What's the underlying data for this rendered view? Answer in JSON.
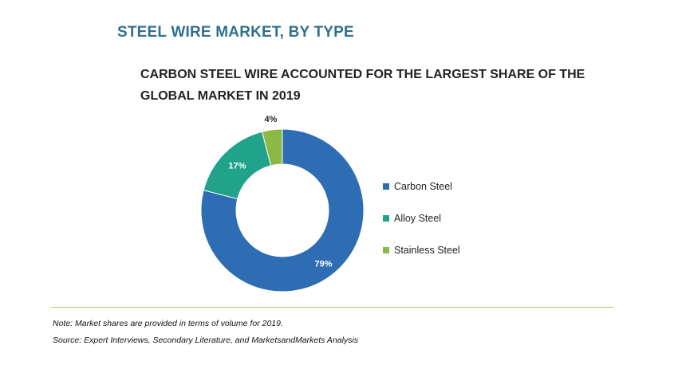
{
  "title": "STEEL WIRE MARKET, BY TYPE",
  "subtitle": "CARBON STEEL WIRE ACCOUNTED FOR THE LARGEST SHARE OF THE GLOBAL MARKET IN 2019",
  "chart_data": {
    "type": "pie",
    "donut": true,
    "title": "CARBON STEEL WIRE ACCOUNTED FOR THE LARGEST SHARE OF THE GLOBAL MARKET IN 2019",
    "categories": [
      "Carbon Steel",
      "Alloy Steel",
      "Stainless Steel"
    ],
    "values": [
      79,
      17,
      4
    ],
    "labels": [
      "79%",
      "17%",
      "4%"
    ],
    "colors": [
      "#2e6db4",
      "#20a38a",
      "#8cb846"
    ],
    "legend_position": "right"
  },
  "legend": [
    {
      "label": "Carbon Steel",
      "color": "#2e6db4"
    },
    {
      "label": "Alloy Steel",
      "color": "#20a38a"
    },
    {
      "label": "Stainless Steel",
      "color": "#8cb846"
    }
  ],
  "footer": {
    "note": "Note: Market shares are provided in terms of volume for 2019.",
    "source": "Source: Expert Interviews, Secondary Literature, and MarketsandMarkets Analysis"
  }
}
